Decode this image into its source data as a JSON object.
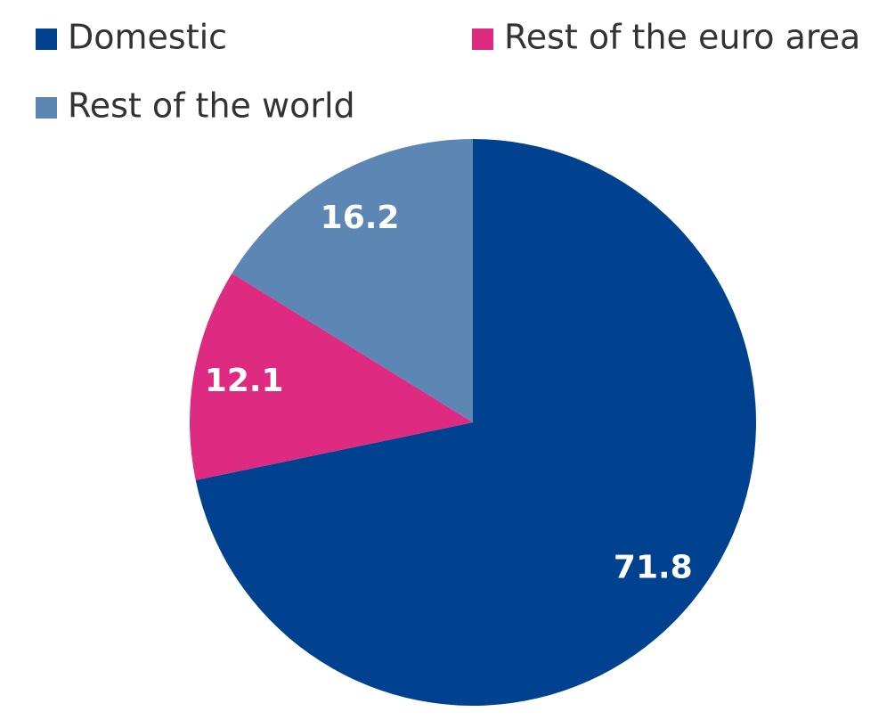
{
  "chart_data": {
    "type": "pie",
    "categories": [
      "Domestic",
      "Rest of the euro area",
      "Rest of the world"
    ],
    "values": [
      71.8,
      12.1,
      16.2
    ],
    "colors": [
      "#00428f",
      "#de2a80",
      "#5c87b5"
    ]
  }
}
